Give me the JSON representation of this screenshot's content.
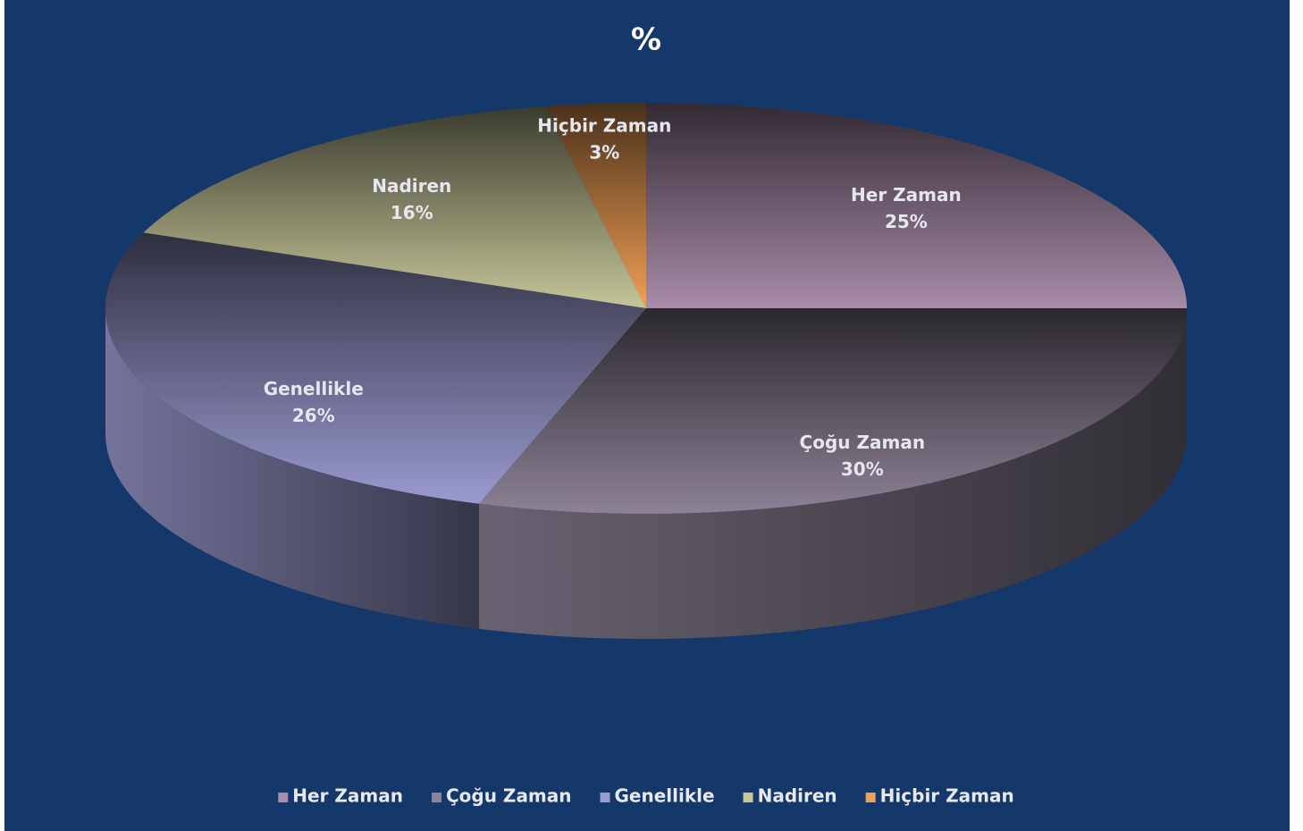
{
  "chart_data": {
    "type": "pie",
    "title": "%",
    "categories": [
      "Her Zaman",
      "Çoğu Zaman",
      "Genellikle",
      "Nadiren",
      "Hiçbir Zaman"
    ],
    "values": [
      25,
      30,
      26,
      16,
      3
    ],
    "value_labels": [
      "25%",
      "30%",
      "26%",
      "16%",
      "3%"
    ],
    "colors": [
      "#a88ca9",
      "#8d8296",
      "#9a9ad0",
      "#c6c69a",
      "#f2a055"
    ],
    "legend": "bottom"
  }
}
